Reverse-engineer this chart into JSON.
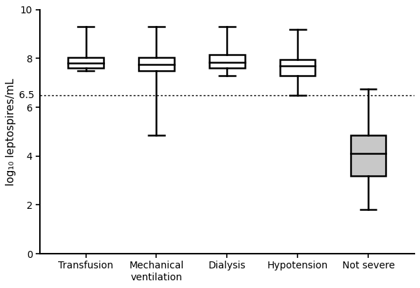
{
  "categories": [
    "Transfusion",
    "Mechanical\nventilation",
    "Dialysis",
    "Hypotension",
    "Not severe"
  ],
  "boxes": [
    {
      "whisker_low": 7.5,
      "q1": 7.6,
      "median": 7.8,
      "q3": 8.05,
      "whisker_high": 9.3,
      "color": "white"
    },
    {
      "whisker_low": 4.85,
      "q1": 7.5,
      "median": 7.75,
      "q3": 8.05,
      "whisker_high": 9.3,
      "color": "white"
    },
    {
      "whisker_low": 7.3,
      "q1": 7.6,
      "median": 7.85,
      "q3": 8.15,
      "whisker_high": 9.3,
      "color": "white"
    },
    {
      "whisker_low": 6.5,
      "q1": 7.3,
      "median": 7.7,
      "q3": 7.95,
      "whisker_high": 9.2,
      "color": "white"
    },
    {
      "whisker_low": 1.8,
      "q1": 3.2,
      "median": 4.1,
      "q3": 4.85,
      "whisker_high": 6.75,
      "color": "#c8c8c8"
    }
  ],
  "ylabel": "log₁₀ leptospires/mL",
  "ylim": [
    0,
    10
  ],
  "yticks": [
    0,
    2,
    4,
    6,
    8,
    10
  ],
  "ytick_labels": [
    "0",
    "2",
    "4",
    "6",
    "8",
    "10"
  ],
  "dotted_line_y": 6.5,
  "dotted_line_label": "6.5",
  "box_width": 0.5,
  "cap_ratio": 0.45,
  "linewidth": 1.8,
  "background_color": "#ffffff",
  "fig_width": 6.0,
  "fig_height": 4.11,
  "dpi": 100
}
